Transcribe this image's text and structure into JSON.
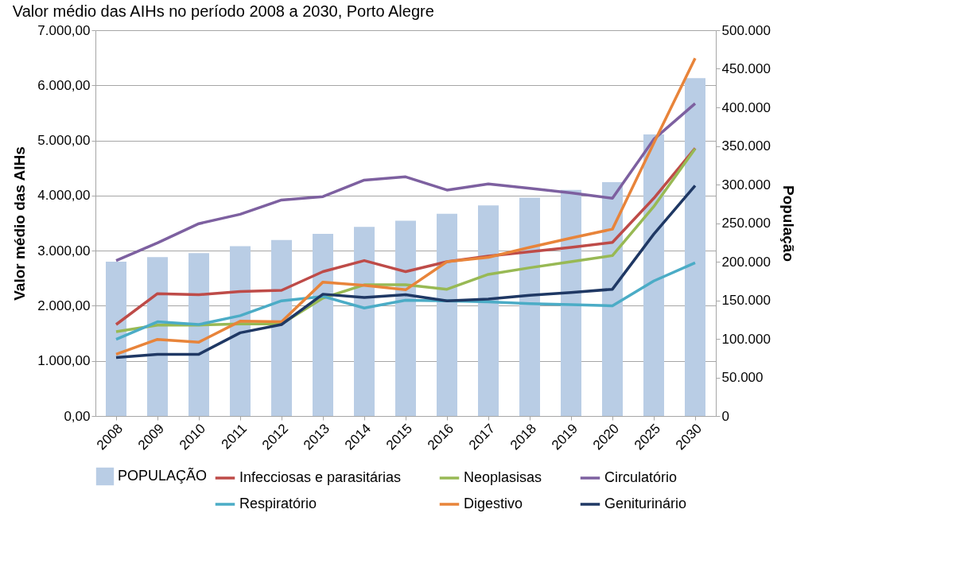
{
  "chart_data": {
    "type": "line",
    "title": "Valor médio das AIHs no período 2008 a 2030, Porto Alegre",
    "ylabel": "Valor médio das AIHs",
    "y2label": "População",
    "categories": [
      "2008",
      "2009",
      "2010",
      "2011",
      "2012",
      "2013",
      "2014",
      "2015",
      "2016",
      "2017",
      "2018",
      "2019",
      "2020",
      "2025",
      "2030"
    ],
    "series": [
      {
        "name": "POPULAÇÃO",
        "type": "bar",
        "axis": "y2",
        "color": "#b9cde5",
        "values": [
          200000,
          206000,
          211000,
          220000,
          228000,
          236000,
          245000,
          253000,
          262000,
          273000,
          283000,
          293000,
          303000,
          365000,
          438000
        ]
      },
      {
        "name": "Infecciosas e parasitárias",
        "color": "#be4b48",
        "values": [
          1660,
          2220,
          2200,
          2260,
          2280,
          2620,
          2820,
          2620,
          2800,
          2900,
          2980,
          3060,
          3150,
          3950,
          4860
        ]
      },
      {
        "name": "Neoplasisas",
        "color": "#98b954",
        "values": [
          1530,
          1650,
          1650,
          1670,
          1670,
          2140,
          2380,
          2380,
          2300,
          2570,
          2690,
          2800,
          2910,
          3800,
          4850
        ]
      },
      {
        "name": "Circulatório",
        "color": "#7d60a0",
        "values": [
          2820,
          3140,
          3490,
          3660,
          3920,
          3980,
          4280,
          4340,
          4100,
          4210,
          4130,
          4050,
          3950,
          5020,
          5670
        ]
      },
      {
        "name": "Respiratório",
        "color": "#4bacc6",
        "values": [
          1390,
          1710,
          1660,
          1820,
          2090,
          2170,
          1960,
          2100,
          2090,
          2070,
          2040,
          2020,
          2000,
          2450,
          2780
        ]
      },
      {
        "name": "Digestivo",
        "color": "#e8843a",
        "values": [
          1120,
          1390,
          1340,
          1720,
          1710,
          2430,
          2370,
          2290,
          2800,
          2880,
          3060,
          3230,
          3390,
          4950,
          6490
        ]
      },
      {
        "name": "Geniturinário",
        "color": "#1f3864",
        "values": [
          1060,
          1120,
          1120,
          1510,
          1660,
          2210,
          2150,
          2200,
          2090,
          2120,
          2190,
          2240,
          2300,
          3300,
          4180
        ]
      }
    ],
    "ylim": [
      0,
      7000
    ],
    "yticks": [
      {
        "value": 0,
        "label": "0,00"
      },
      {
        "value": 1000,
        "label": "1.000,00"
      },
      {
        "value": 2000,
        "label": "2.000,00"
      },
      {
        "value": 3000,
        "label": "3.000,00"
      },
      {
        "value": 4000,
        "label": "4.000,00"
      },
      {
        "value": 5000,
        "label": "5.000,00"
      },
      {
        "value": 6000,
        "label": "6.000,00"
      },
      {
        "value": 7000,
        "label": "7.000,00"
      }
    ],
    "y2lim": [
      0,
      500000
    ],
    "y2ticks": [
      {
        "value": 0,
        "label": "0"
      },
      {
        "value": 50000,
        "label": "50.000"
      },
      {
        "value": 100000,
        "label": "100.000"
      },
      {
        "value": 150000,
        "label": "150.000"
      },
      {
        "value": 200000,
        "label": "200.000"
      },
      {
        "value": 250000,
        "label": "250.000"
      },
      {
        "value": 300000,
        "label": "300.000"
      },
      {
        "value": 350000,
        "label": "350.000"
      },
      {
        "value": 400000,
        "label": "400.000"
      },
      {
        "value": 450000,
        "label": "450.000"
      },
      {
        "value": 500000,
        "label": "500.000"
      }
    ],
    "grid": "y",
    "legend": "bottom",
    "marker": "none",
    "line_style": "solid"
  }
}
